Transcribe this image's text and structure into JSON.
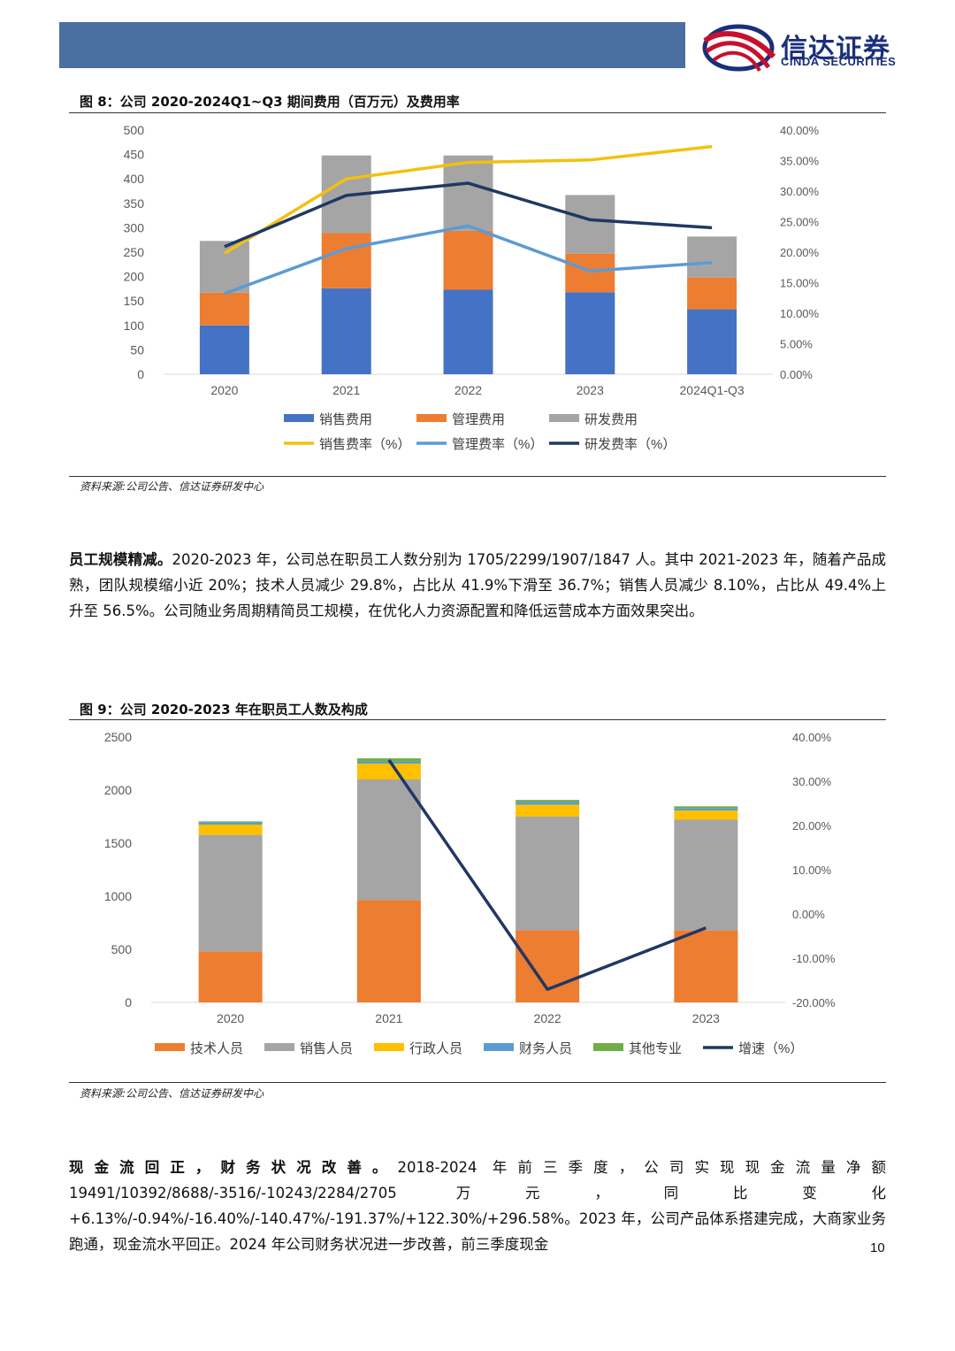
{
  "header": {
    "logo_cn": "信达证券",
    "logo_en": "CINDA SECURITIES",
    "colors": {
      "bar": "#4a6fa0",
      "logo_red": "#c8102e",
      "logo_blue": "#1a2f7a"
    }
  },
  "figure8": {
    "title": "图 8：公司 2020-2024Q1~Q3 期间费用（百万元）及费用率",
    "source": "资料来源:公司公告、信达证券研发中心"
  },
  "figure9": {
    "title": "图 9：公司 2020-2023 年在职员工人数及构成",
    "source": "资料来源:公司公告、信达证券研发中心"
  },
  "paragraph1": {
    "bold": "员工规模精减。",
    "text": "2020-2023 年，公司总在职员工人数分别为 1705/2299/1907/1847 人。其中 2021-2023 年，随着产品成熟，团队规模缩小近 20%；技术人员减少 29.8%，占比从 41.9%下滑至 36.7%；销售人员减少 8.10%，占比从 49.4%上升至 56.5%。公司随业务周期精简员工规模，在优化人力资源配置和降低运营成本方面效果突出。"
  },
  "paragraph2": {
    "bold": "现金流回正，财务状况改善。",
    "text": "2018-2024 年前三季度，公司实现现金流量净额 19491/10392/8688/-3516/-10243/2284/2705 万元，同比变化+6.13%/-0.94%/-16.40%/-140.47%/-191.37%/+122.30%/+296.58%。2023 年，公司产品体系搭建完成，大商家业务跑通，现金流水平回正。2024 年公司财务状况进一步改善，前三季度现金"
  },
  "page_number": "10",
  "chart_data": [
    {
      "type": "bar",
      "stacked": true,
      "categories": [
        "2020",
        "2021",
        "2022",
        "2023",
        "2024Q1-Q3"
      ],
      "series": [
        {
          "name": "销售费用",
          "values": [
            100,
            176,
            173,
            168,
            133
          ],
          "color": "#4472c4"
        },
        {
          "name": "管理费用",
          "values": [
            67,
            113,
            121,
            79,
            65
          ],
          "color": "#ed7d31"
        },
        {
          "name": "研发费用",
          "values": [
            106,
            159,
            154,
            120,
            84
          ],
          "color": "#a5a5a5"
        }
      ],
      "line_series": [
        {
          "name": "销售费率（%）",
          "values": [
            19.8,
            32.0,
            34.7,
            35.1,
            37.3
          ],
          "color": "#f2c10f"
        },
        {
          "name": "管理费率（%）",
          "values": [
            13.2,
            20.6,
            24.3,
            16.9,
            18.3
          ],
          "color": "#5b9bd5"
        },
        {
          "name": "研发费率（%）",
          "values": [
            20.9,
            29.3,
            31.3,
            25.3,
            24.0
          ],
          "color": "#1f3864"
        }
      ],
      "ylim": [
        0,
        500
      ],
      "y_ticks": [
        "0",
        "50",
        "100",
        "150",
        "200",
        "250",
        "300",
        "350",
        "400",
        "450",
        "500"
      ],
      "y2lim": [
        0,
        40
      ],
      "y2_ticks": [
        "0.00%",
        "5.00%",
        "10.00%",
        "15.00%",
        "20.00%",
        "25.00%",
        "30.00%",
        "35.00%",
        "40.00%"
      ],
      "legend_position": "bottom",
      "grid": false
    },
    {
      "type": "bar",
      "stacked": true,
      "categories": [
        "2020",
        "2021",
        "2022",
        "2023"
      ],
      "series": [
        {
          "name": "技术人员",
          "values": [
            480,
            965,
            680,
            678
          ],
          "color": "#ed7d31"
        },
        {
          "name": "销售人员",
          "values": [
            1098,
            1135,
            1070,
            1043
          ],
          "color": "#a5a5a5"
        },
        {
          "name": "行政人员",
          "values": [
            97,
            150,
            112,
            86
          ],
          "color": "#ffc000"
        },
        {
          "name": "财务人员",
          "values": [
            20,
            20,
            25,
            20
          ],
          "color": "#5b9bd5"
        },
        {
          "name": "其他专业",
          "values": [
            10,
            29,
            20,
            20
          ],
          "color": "#70ad47"
        }
      ],
      "line_series": [
        {
          "name": "增速（%）",
          "values": [
            null,
            34.8,
            -17.05,
            -3.15
          ],
          "color": "#1f3864"
        }
      ],
      "ylim": [
        0,
        2500
      ],
      "y_ticks": [
        "0",
        "500",
        "1000",
        "1500",
        "2000",
        "2500"
      ],
      "y2lim": [
        -20,
        40
      ],
      "y2_ticks": [
        "-20.00%",
        "-10.00%",
        "0.00%",
        "10.00%",
        "20.00%",
        "30.00%",
        "40.00%"
      ],
      "legend_position": "bottom",
      "grid": false
    }
  ]
}
